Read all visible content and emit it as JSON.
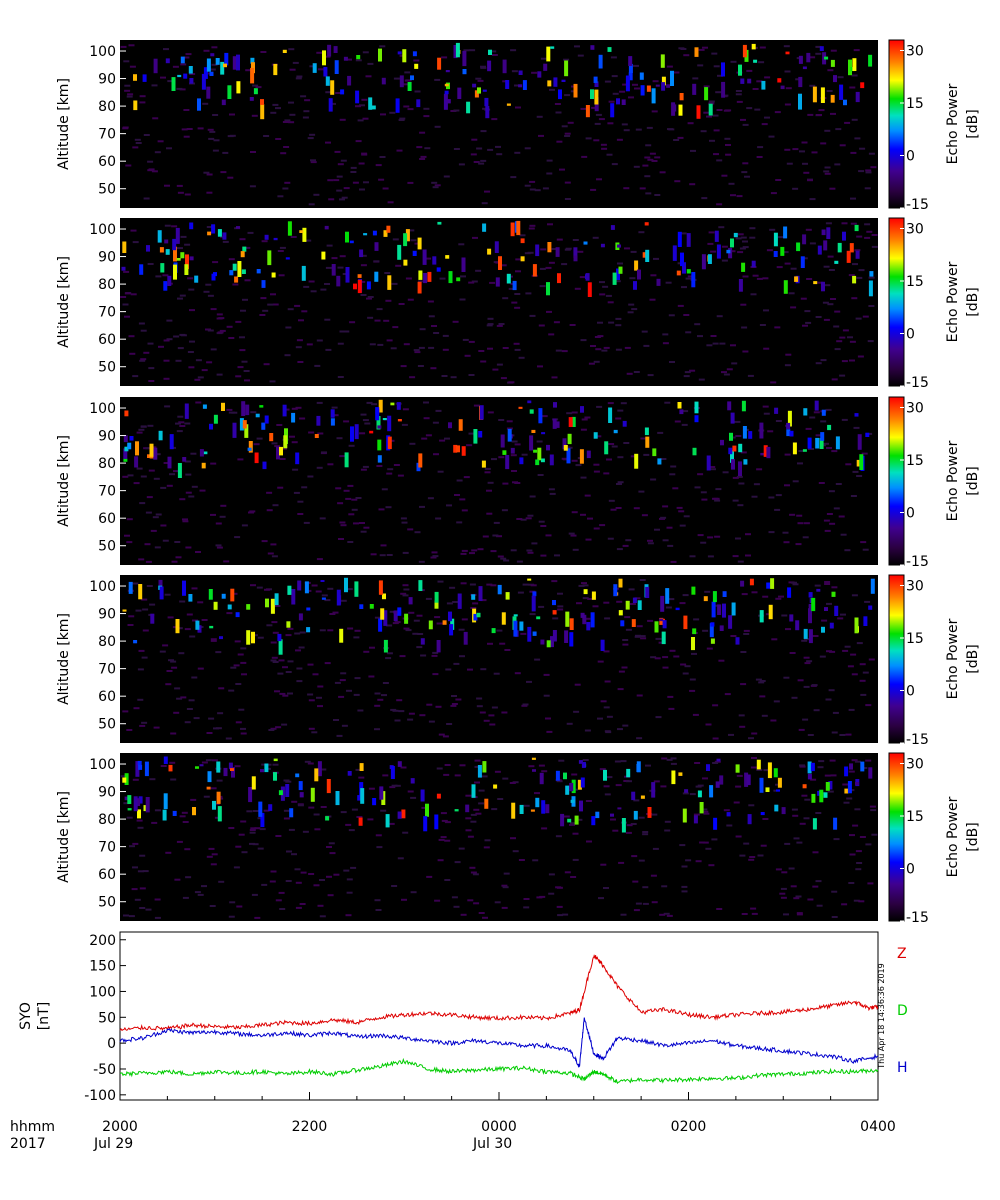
{
  "chart_data": [
    {
      "type": "heatmap",
      "panel": 1,
      "ylabel": "Altitude [km]",
      "yticks": [
        50,
        60,
        70,
        80,
        90,
        100
      ],
      "ylim": [
        43,
        104
      ],
      "colorbar": {
        "label_line1": "Echo Power",
        "label_line2": "[dB]",
        "ticks": [
          30,
          15,
          0,
          -15
        ],
        "range": [
          -15,
          33
        ]
      },
      "background_level_db": -15,
      "echo_layer_km": [
        80,
        100
      ]
    },
    {
      "type": "heatmap",
      "panel": 2,
      "ylabel": "Altitude [km]",
      "yticks": [
        50,
        60,
        70,
        80,
        90,
        100
      ],
      "ylim": [
        43,
        104
      ],
      "colorbar": {
        "label_line1": "Echo Power",
        "label_line2": "[dB]",
        "ticks": [
          30,
          15,
          0,
          -15
        ],
        "range": [
          -15,
          33
        ]
      },
      "background_level_db": -15,
      "echo_layer_km": [
        80,
        100
      ]
    },
    {
      "type": "heatmap",
      "panel": 3,
      "ylabel": "Altitude [km]",
      "yticks": [
        50,
        60,
        70,
        80,
        90,
        100
      ],
      "ylim": [
        43,
        104
      ],
      "colorbar": {
        "label_line1": "Echo Power",
        "label_line2": "[dB]",
        "ticks": [
          30,
          15,
          0,
          -15
        ],
        "range": [
          -15,
          33
        ]
      },
      "background_level_db": -15,
      "echo_layer_km": [
        80,
        100
      ]
    },
    {
      "type": "heatmap",
      "panel": 4,
      "ylabel": "Altitude [km]",
      "yticks": [
        50,
        60,
        70,
        80,
        90,
        100
      ],
      "ylim": [
        43,
        104
      ],
      "colorbar": {
        "label_line1": "Echo Power",
        "label_line2": "[dB]",
        "ticks": [
          30,
          15,
          0,
          -15
        ],
        "range": [
          -15,
          33
        ]
      },
      "background_level_db": -15,
      "echo_layer_km": [
        80,
        100
      ]
    },
    {
      "type": "heatmap",
      "panel": 5,
      "ylabel": "Altitude [km]",
      "yticks": [
        50,
        60,
        70,
        80,
        90,
        100
      ],
      "ylim": [
        43,
        104
      ],
      "colorbar": {
        "label_line1": "Echo Power",
        "label_line2": "[dB]",
        "ticks": [
          30,
          15,
          0,
          -15
        ],
        "range": [
          -15,
          33
        ]
      },
      "background_level_db": -15,
      "echo_layer_km": [
        80,
        100
      ]
    },
    {
      "type": "line",
      "ylabel_line1": "SYO",
      "ylabel_line2": "[nT]",
      "yticks": [
        200,
        150,
        100,
        50,
        0,
        -50,
        -100
      ],
      "ylim": [
        -110,
        215
      ],
      "xlim_hours": [
        20,
        28
      ],
      "series": [
        {
          "name": "Z",
          "color": "#dd0000",
          "x": [
            20.0,
            20.25,
            20.5,
            20.75,
            21.0,
            21.25,
            21.5,
            21.75,
            22.0,
            22.25,
            22.5,
            22.75,
            23.0,
            23.25,
            23.5,
            23.75,
            24.0,
            24.25,
            24.5,
            24.75,
            24.85,
            25.0,
            25.1,
            25.25,
            25.5,
            25.75,
            26.0,
            26.25,
            26.5,
            26.75,
            27.0,
            27.25,
            27.5,
            27.75,
            27.9,
            28.0
          ],
          "y": [
            25,
            30,
            28,
            35,
            32,
            30,
            35,
            40,
            38,
            45,
            40,
            50,
            55,
            58,
            55,
            50,
            48,
            50,
            48,
            58,
            65,
            170,
            150,
            110,
            60,
            65,
            55,
            50,
            55,
            58,
            60,
            65,
            72,
            80,
            68,
            70
          ]
        },
        {
          "name": "D",
          "color": "#00cc00",
          "x": [
            20.0,
            20.25,
            20.5,
            20.75,
            21.0,
            21.25,
            21.5,
            21.75,
            22.0,
            22.25,
            22.5,
            22.75,
            23.0,
            23.25,
            23.5,
            23.75,
            24.0,
            24.25,
            24.5,
            24.75,
            24.9,
            25.0,
            25.1,
            25.25,
            25.5,
            25.75,
            26.0,
            26.25,
            26.5,
            26.75,
            27.0,
            27.25,
            27.5,
            27.75,
            28.0
          ],
          "y": [
            -60,
            -58,
            -55,
            -60,
            -55,
            -58,
            -55,
            -60,
            -55,
            -60,
            -52,
            -45,
            -35,
            -50,
            -55,
            -52,
            -50,
            -48,
            -55,
            -58,
            -70,
            -55,
            -60,
            -75,
            -70,
            -72,
            -70,
            -68,
            -68,
            -62,
            -60,
            -58,
            -55,
            -55,
            -52
          ]
        },
        {
          "name": "H",
          "color": "#0000cc",
          "x": [
            20.0,
            20.25,
            20.5,
            20.75,
            21.0,
            21.25,
            21.5,
            21.75,
            22.0,
            22.25,
            22.5,
            22.75,
            23.0,
            23.25,
            23.5,
            23.75,
            24.0,
            24.25,
            24.5,
            24.75,
            24.85,
            24.9,
            25.0,
            25.1,
            25.25,
            25.5,
            25.75,
            26.0,
            26.25,
            26.5,
            26.75,
            27.0,
            27.25,
            27.5,
            27.75,
            28.0
          ],
          "y": [
            5,
            10,
            25,
            20,
            22,
            18,
            15,
            20,
            15,
            20,
            12,
            15,
            10,
            5,
            0,
            5,
            0,
            -5,
            -5,
            -15,
            -45,
            50,
            -20,
            -30,
            10,
            5,
            -5,
            0,
            5,
            -5,
            -10,
            -15,
            -20,
            -25,
            -35,
            -25
          ]
        }
      ],
      "timestamp_text": "Thu Apr 18 14:36:36 2019"
    }
  ],
  "x_axis": {
    "row1_label": "hhmm",
    "row2_label": "2017",
    "ticks": [
      {
        "t": 20,
        "top": "2000",
        "bottom": "Jul 29"
      },
      {
        "t": 22,
        "top": "2200",
        "bottom": ""
      },
      {
        "t": 24,
        "top": "0000",
        "bottom": "Jul 30"
      },
      {
        "t": 26,
        "top": "0200",
        "bottom": ""
      },
      {
        "t": 28,
        "top": "0400",
        "bottom": ""
      }
    ]
  }
}
